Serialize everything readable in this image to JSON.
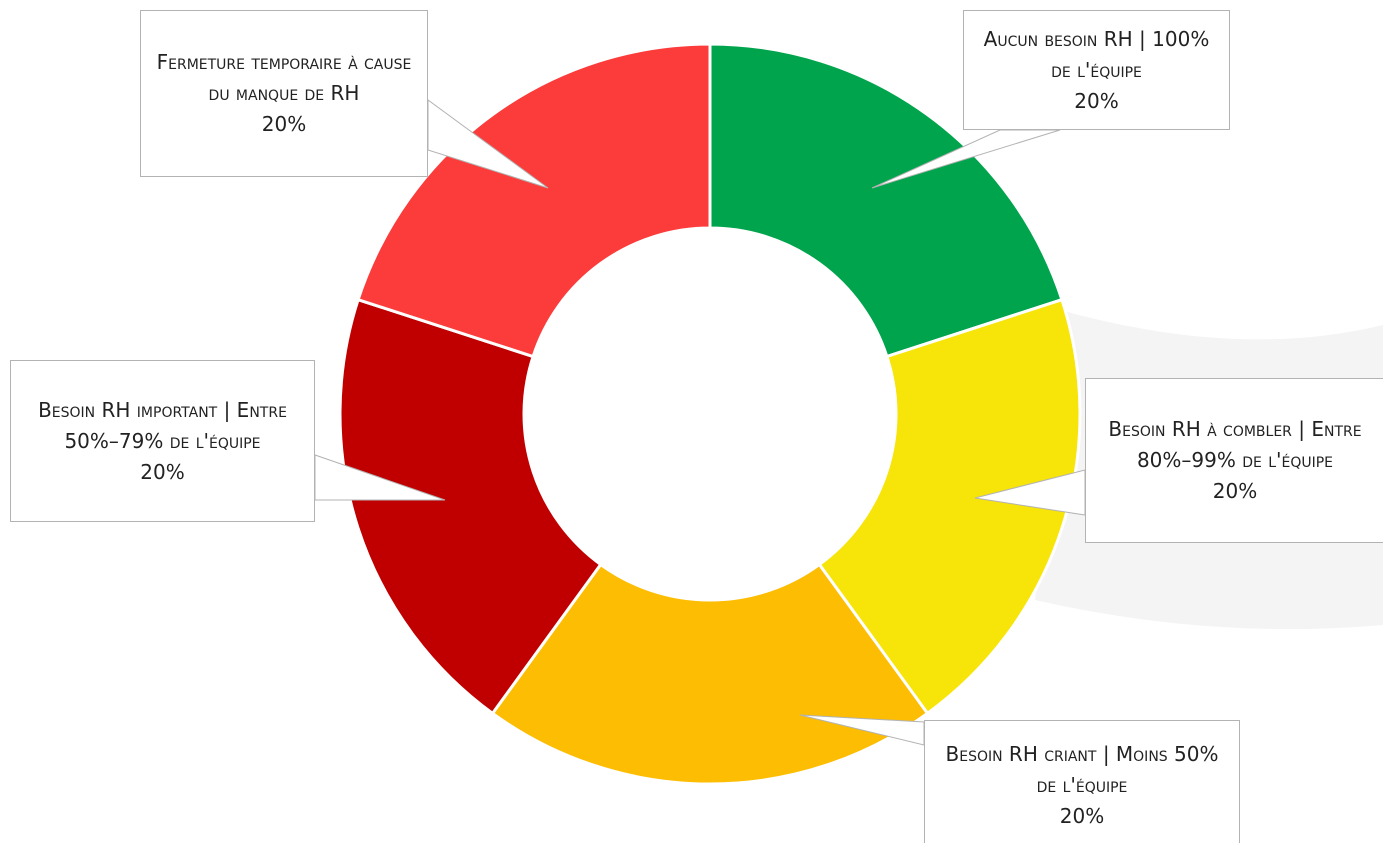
{
  "chart_data": {
    "type": "donut",
    "categories": [
      "Aucun besoin RH | 100% de l'équipe",
      "Besoin RH à combler | Entre 80%–99% de l'équipe",
      "Besoin RH criant | Moins 50% de l'équipe",
      "Besoin RH important | Entre 50%–79% de l'équipe",
      "Fermeture temporaire à cause du manque de RH"
    ],
    "values": [
      20,
      20,
      20,
      20,
      20
    ],
    "value_labels": [
      "20%",
      "20%",
      "20%",
      "20%",
      "20%"
    ],
    "colors": [
      "#00a44c",
      "#f7e409",
      "#fcbd02",
      "#c00000",
      "#fc3b3b"
    ]
  }
}
